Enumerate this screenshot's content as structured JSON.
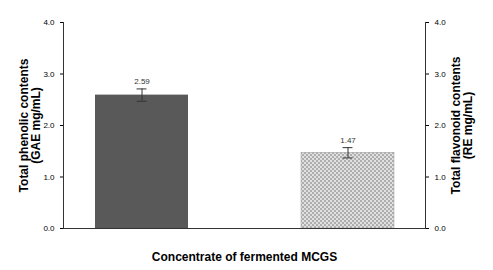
{
  "chart_data": {
    "type": "bar",
    "x_label": "Concentrate of fermented MCGS",
    "y_label": "Total phenolic contents\n(GAE mg/mL)",
    "y2_label": "Total flavonoid contents\n(RE mg/mL)",
    "categories": [
      null,
      null
    ],
    "series": [
      {
        "color": "#595959",
        "values": [
          2.59,
          null
        ],
        "errors": [
          0.12,
          null
        ]
      },
      {
        "color": "#e0e0e0",
        "values": [
          null,
          1.47
        ],
        "errors": [
          null,
          0.1
        ],
        "axis": "y2"
      }
    ],
    "ylim": [
      0,
      4
    ],
    "yticks": [
      0,
      1,
      2,
      3,
      4
    ],
    "y2lim": [
      0,
      4
    ],
    "y2ticks": [
      0,
      1,
      2,
      3,
      4
    ],
    "data_labels": true
  }
}
